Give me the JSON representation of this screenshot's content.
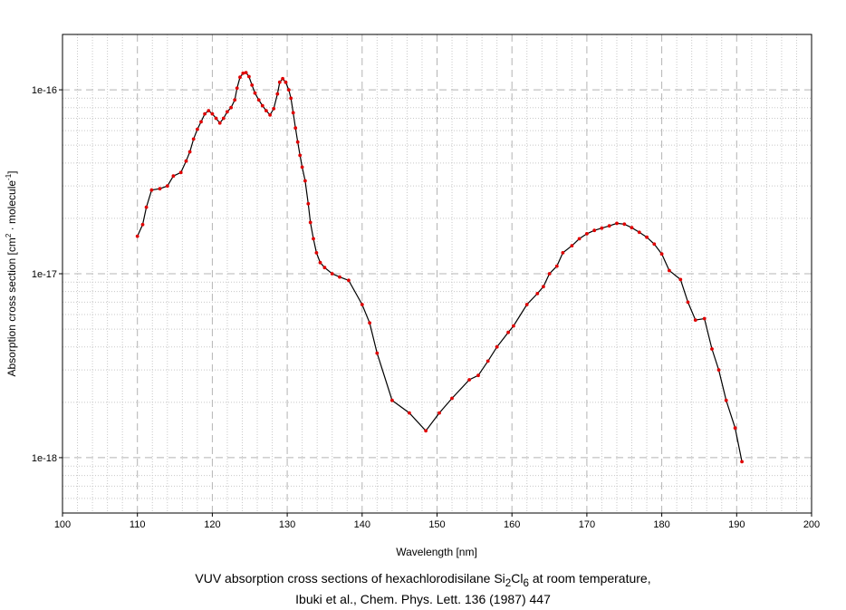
{
  "caption": {
    "line1_prefix": "VUV absorption cross sections of hexachlorodisilane Si",
    "sub1": "2",
    "mid": "Cl",
    "sub2": "6",
    "line1_suffix": " at room temperature,",
    "line2": "Ibuki et al., Chem. Phys. Lett. 136 (1987) 447"
  },
  "chart_data": {
    "type": "line",
    "xlabel": "Wavelength [nm]",
    "ylabel_prefix": "Absorption cross section [cm",
    "ylabel_sup1": "2",
    "ylabel_mid": " · molecule",
    "ylabel_sup2": "-1",
    "ylabel_suffix": "]",
    "xlim": [
      100,
      200
    ],
    "ylim": [
      5e-19,
      2e-16
    ],
    "yscale": "log",
    "x_ticks": [
      100,
      110,
      120,
      130,
      140,
      150,
      160,
      170,
      180,
      190,
      200
    ],
    "y_ticks": [
      1e-18,
      1e-17,
      1e-16
    ],
    "y_tick_labels": [
      "1e-18",
      "1e-17",
      "1e-16"
    ],
    "grid": true,
    "line_color": "#000000",
    "marker_color": "#e00000",
    "series": [
      {
        "points": [
          [
            110.0,
            1.6e-17
          ],
          [
            110.7,
            1.85e-17
          ],
          [
            111.2,
            2.3e-17
          ],
          [
            111.9,
            2.85e-17
          ],
          [
            113.0,
            2.9e-17
          ],
          [
            114.0,
            3e-17
          ],
          [
            114.8,
            3.4e-17
          ],
          [
            115.8,
            3.55e-17
          ],
          [
            116.5,
            4.1e-17
          ],
          [
            117.0,
            4.6e-17
          ],
          [
            117.5,
            5.4e-17
          ],
          [
            118.0,
            6.1e-17
          ],
          [
            118.5,
            6.7e-17
          ],
          [
            119.0,
            7.4e-17
          ],
          [
            119.5,
            7.7e-17
          ],
          [
            120.0,
            7.4e-17
          ],
          [
            120.5,
            7e-17
          ],
          [
            121.0,
            6.6e-17
          ],
          [
            121.5,
            7e-17
          ],
          [
            122.0,
            7.6e-17
          ],
          [
            122.5,
            8e-17
          ],
          [
            123.0,
            8.8e-17
          ],
          [
            123.3,
            1.02e-16
          ],
          [
            123.7,
            1.17e-16
          ],
          [
            124.1,
            1.23e-16
          ],
          [
            124.5,
            1.24e-16
          ],
          [
            124.9,
            1.18e-16
          ],
          [
            125.3,
            1.06e-16
          ],
          [
            125.7,
            9.6e-17
          ],
          [
            126.2,
            8.8e-17
          ],
          [
            126.7,
            8.2e-17
          ],
          [
            127.2,
            7.7e-17
          ],
          [
            127.7,
            7.3e-17
          ],
          [
            128.2,
            7.9e-17
          ],
          [
            128.7,
            9.5e-17
          ],
          [
            129.0,
            1.1e-16
          ],
          [
            129.4,
            1.15e-16
          ],
          [
            129.8,
            1.1e-16
          ],
          [
            130.2,
            1e-16
          ],
          [
            130.5,
            9e-17
          ],
          [
            130.8,
            7.5e-17
          ],
          [
            131.1,
            6.2e-17
          ],
          [
            131.4,
            5.2e-17
          ],
          [
            131.7,
            4.4e-17
          ],
          [
            132.0,
            3.8e-17
          ],
          [
            132.4,
            3.2e-17
          ],
          [
            132.8,
            2.4e-17
          ],
          [
            133.1,
            1.9e-17
          ],
          [
            133.5,
            1.55e-17
          ],
          [
            133.9,
            1.3e-17
          ],
          [
            134.4,
            1.15e-17
          ],
          [
            135.0,
            1.08e-17
          ],
          [
            136.0,
            1e-17
          ],
          [
            137.0,
            9.6e-18
          ],
          [
            138.2,
            9.2e-18
          ],
          [
            140.0,
            6.8e-18
          ],
          [
            141.0,
            5.4e-18
          ],
          [
            142.0,
            3.7e-18
          ],
          [
            144.0,
            2.05e-18
          ],
          [
            146.3,
            1.75e-18
          ],
          [
            148.5,
            1.4e-18
          ],
          [
            150.3,
            1.75e-18
          ],
          [
            152.0,
            2.1e-18
          ],
          [
            154.3,
            2.65e-18
          ],
          [
            155.5,
            2.8e-18
          ],
          [
            156.8,
            3.35e-18
          ],
          [
            158.0,
            4e-18
          ],
          [
            159.5,
            4.8e-18
          ],
          [
            160.2,
            5.2e-18
          ],
          [
            162.0,
            6.8e-18
          ],
          [
            163.4,
            7.8e-18
          ],
          [
            164.2,
            8.5e-18
          ],
          [
            165.0,
            1e-17
          ],
          [
            166.0,
            1.1e-17
          ],
          [
            166.8,
            1.3e-17
          ],
          [
            168.0,
            1.42e-17
          ],
          [
            169.0,
            1.55e-17
          ],
          [
            170.0,
            1.65e-17
          ],
          [
            171.0,
            1.72e-17
          ],
          [
            172.0,
            1.77e-17
          ],
          [
            173.0,
            1.82e-17
          ],
          [
            174.0,
            1.88e-17
          ],
          [
            175.0,
            1.86e-17
          ],
          [
            176.0,
            1.78e-17
          ],
          [
            177.0,
            1.68e-17
          ],
          [
            178.0,
            1.58e-17
          ],
          [
            179.0,
            1.45e-17
          ],
          [
            180.0,
            1.28e-17
          ],
          [
            181.0,
            1.04e-17
          ],
          [
            182.5,
            9.3e-18
          ],
          [
            183.5,
            7e-18
          ],
          [
            184.5,
            5.6e-18
          ],
          [
            185.7,
            5.7e-18
          ],
          [
            186.7,
            3.9e-18
          ],
          [
            187.6,
            3e-18
          ],
          [
            188.6,
            2.05e-18
          ],
          [
            189.8,
            1.45e-18
          ],
          [
            190.7,
            9.5e-19
          ]
        ]
      }
    ]
  }
}
